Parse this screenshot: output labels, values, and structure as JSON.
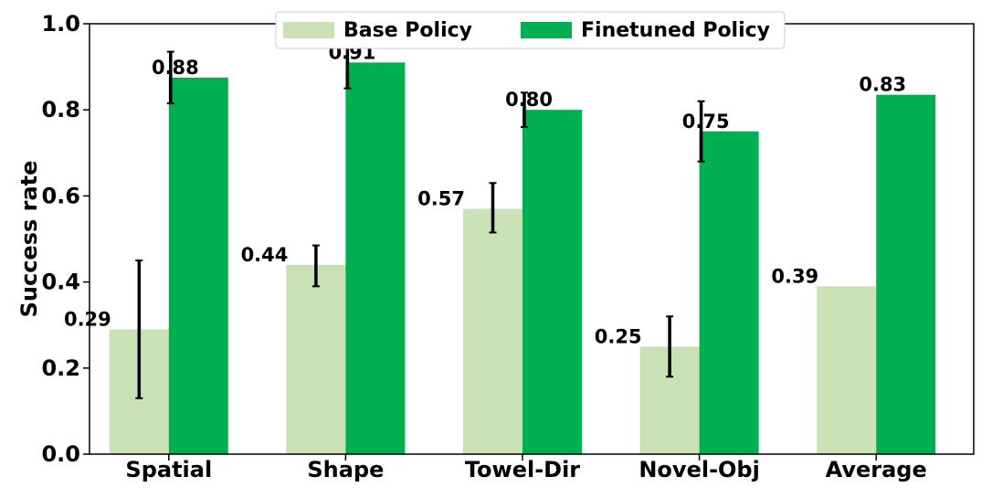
{
  "chart_data": {
    "type": "bar",
    "title": "",
    "xlabel": "",
    "ylabel": "Success rate",
    "ylim": [
      0,
      1.0
    ],
    "yticks": [
      "0.0",
      "0.2",
      "0.4",
      "0.6",
      "0.8",
      "1.0"
    ],
    "categories": [
      "Spatial",
      "Shape",
      "Towel-Dir",
      "Novel-Obj",
      "Average"
    ],
    "legend_position": "top-center",
    "series": [
      {
        "name": "Base Policy",
        "color": "#c8e2b6",
        "values": [
          0.29,
          0.44,
          0.57,
          0.25,
          0.39
        ],
        "labels": [
          "0.29",
          "0.44",
          "0.57",
          "0.25",
          "0.39"
        ],
        "error_low": [
          0.13,
          0.39,
          0.515,
          0.18,
          null
        ],
        "error_high": [
          0.45,
          0.485,
          0.63,
          0.32,
          null
        ]
      },
      {
        "name": "Finetuned Policy",
        "color": "#00b050",
        "values": [
          0.875,
          0.91,
          0.8,
          0.75,
          0.835
        ],
        "labels": [
          "0.88",
          "0.91",
          "0.80",
          "0.75",
          "0.83"
        ],
        "error_low": [
          0.815,
          0.85,
          0.76,
          0.68,
          null
        ],
        "error_high": [
          0.935,
          0.97,
          0.84,
          0.82,
          null
        ]
      }
    ],
    "grid": false
  }
}
